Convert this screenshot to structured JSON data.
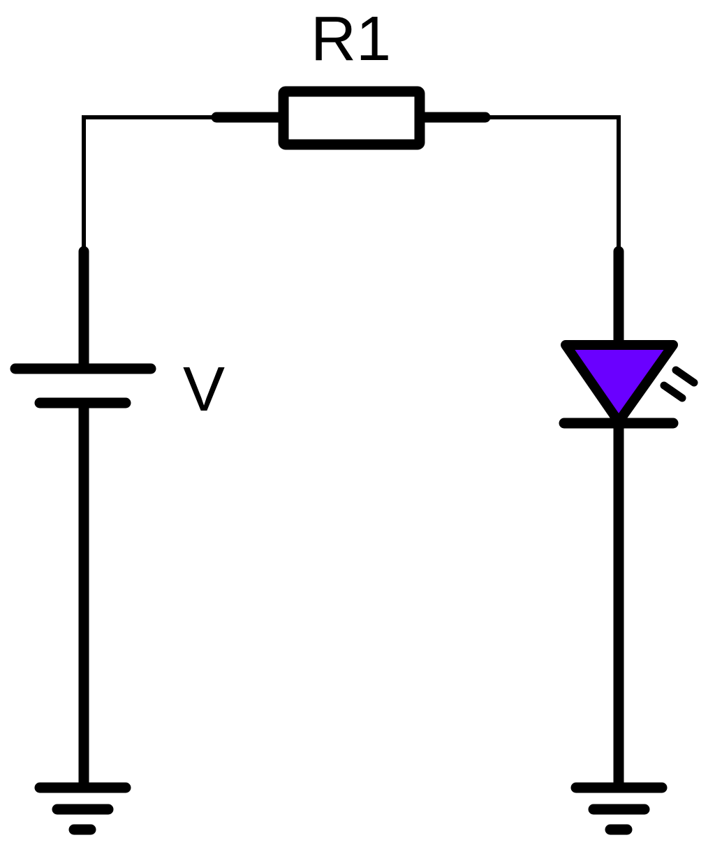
{
  "labels": {
    "resistor": "R1",
    "source": "V"
  },
  "colors": {
    "led_fill": "#6a00ff",
    "line": "#000000",
    "background": "#ffffff"
  }
}
